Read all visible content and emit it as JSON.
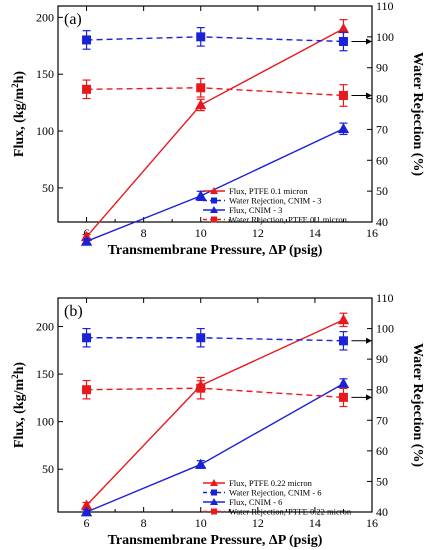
{
  "chart_data": [
    {
      "type": "line",
      "panel_label": "(a)",
      "xlabel": "Transmembrane Pressure, ΔP (psig)",
      "ylabel_left": "Flux, (kg/m²h)",
      "ylabel_left_parts": [
        "Flux, (kg/m",
        "2",
        "h)"
      ],
      "ylabel_right": "Water Rejection (%)",
      "xlim": [
        5,
        16
      ],
      "xticks": [
        6,
        8,
        10,
        12,
        14,
        16
      ],
      "ylim_left": [
        20,
        210
      ],
      "yticks_left": [
        50,
        100,
        150,
        200
      ],
      "ylim_right": [
        40,
        110
      ],
      "yticks_right": [
        40,
        50,
        60,
        70,
        80,
        90,
        100,
        110
      ],
      "legend_position": "bottom-right",
      "series": [
        {
          "name": "Flux, PTFE 0.1 micron",
          "axis": "left",
          "color": "#e8191c",
          "marker": "triangle",
          "dashed": false,
          "x": [
            6,
            10,
            15
          ],
          "y": [
            7,
            123,
            190
          ],
          "err": [
            2,
            5,
            8
          ]
        },
        {
          "name": "Water Rejection, CNIM - 3",
          "axis": "right",
          "color": "#1a22d6",
          "marker": "square",
          "dashed": true,
          "x": [
            6,
            10,
            15
          ],
          "y": [
            99,
            100,
            98.5
          ],
          "err": [
            3,
            3,
            3
          ]
        },
        {
          "name": "Flux, CNIM - 3",
          "axis": "left",
          "color": "#1a22d6",
          "marker": "triangle",
          "dashed": false,
          "x": [
            6,
            10,
            15
          ],
          "y": [
            3,
            43,
            102
          ],
          "err": [
            2,
            4,
            5
          ]
        },
        {
          "name": "Water Rejection,  PTFE 0.1 micron",
          "axis": "right",
          "color": "#e8191c",
          "marker": "square",
          "dashed": true,
          "x": [
            6,
            10,
            15
          ],
          "y": [
            83,
            83.5,
            81
          ],
          "err": [
            3,
            3,
            3.5
          ]
        }
      ]
    },
    {
      "type": "line",
      "panel_label": "(b)",
      "xlabel": "Transmembrane Pressure, ΔP (psig)",
      "ylabel_left": "Flux, (kg/m²h)",
      "ylabel_left_parts": [
        "Flux, (kg/m",
        "2",
        "h)"
      ],
      "ylabel_right": "Water Rejection (%)",
      "xlim": [
        5,
        16
      ],
      "xticks": [
        6,
        8,
        10,
        12,
        14,
        16
      ],
      "ylim_left": [
        5,
        230
      ],
      "yticks_left": [
        50,
        100,
        150,
        200
      ],
      "ylim_right": [
        40,
        110
      ],
      "yticks_right": [
        40,
        50,
        60,
        70,
        80,
        90,
        100,
        110
      ],
      "legend_position": "bottom-right",
      "series": [
        {
          "name": "Flux, PTFE 0.22 micron",
          "axis": "left",
          "color": "#e8191c",
          "marker": "triangle",
          "dashed": false,
          "x": [
            6,
            10,
            15
          ],
          "y": [
            12,
            138,
            207
          ],
          "err": [
            3,
            5,
            7
          ]
        },
        {
          "name": "Water Rejection, CNIM - 6",
          "axis": "right",
          "color": "#1a22d6",
          "marker": "square",
          "dashed": true,
          "x": [
            6,
            10,
            15
          ],
          "y": [
            97,
            97,
            96
          ],
          "err": [
            3,
            3,
            3
          ]
        },
        {
          "name": "Flux, CNIM - 6",
          "axis": "left",
          "color": "#1a22d6",
          "marker": "triangle",
          "dashed": false,
          "x": [
            6,
            10,
            15
          ],
          "y": [
            5,
            55,
            140
          ],
          "err": [
            2,
            4,
            5
          ]
        },
        {
          "name": "Water Rejection,  PTFE 0.22 micron",
          "axis": "right",
          "color": "#e8191c",
          "marker": "square",
          "dashed": true,
          "x": [
            6,
            10,
            15
          ],
          "y": [
            80,
            80.5,
            77.5
          ],
          "err": [
            3,
            3.5,
            3
          ]
        }
      ]
    }
  ]
}
